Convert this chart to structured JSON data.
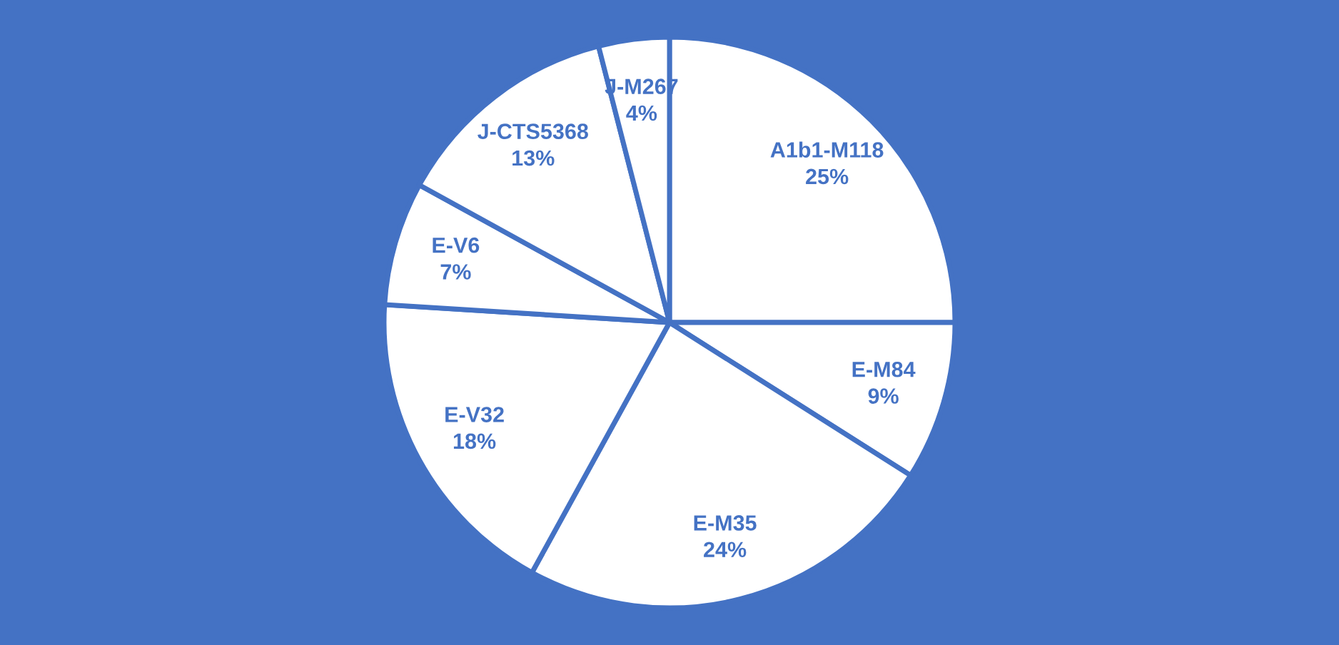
{
  "chart_data": {
    "type": "pie",
    "categories": [
      "A1b1-M118",
      "E-M84",
      "E-M35",
      "E-V32",
      "E-V6",
      "J-CTS5368",
      "J-M267"
    ],
    "values": [
      25,
      9,
      24,
      18,
      7,
      13,
      4
    ],
    "colors": [
      "#ffffff",
      "#ffffff",
      "#ffffff",
      "#ffffff",
      "#ffffff",
      "#ffffff",
      "#ffffff"
    ],
    "value_labels": [
      "25%",
      "9%",
      "24%",
      "18%",
      "7%",
      "13%",
      "4%"
    ],
    "legend": false
  }
}
